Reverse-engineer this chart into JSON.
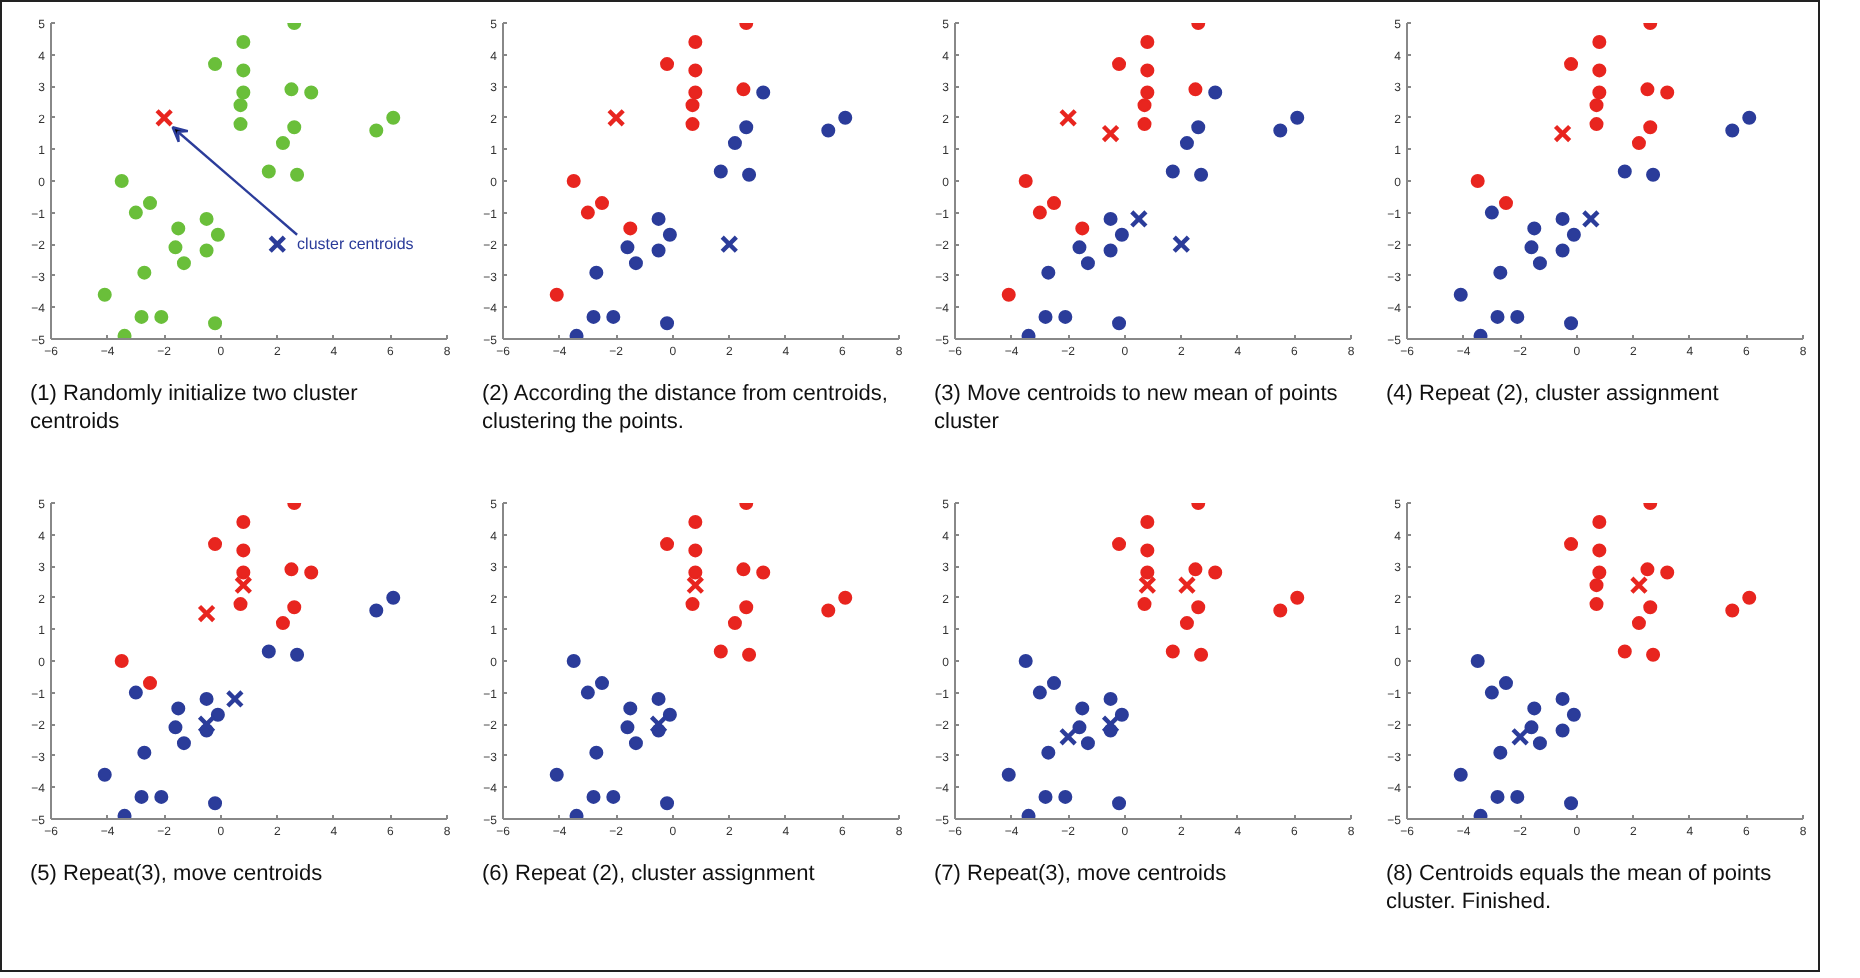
{
  "chart_data": [
    {
      "type": "scatter",
      "title": "(1) Randomly initialize two cluster centroids",
      "xlim": [
        -6,
        8
      ],
      "ylim": [
        -5,
        5
      ],
      "xticks": [
        -6,
        -4,
        -2,
        0,
        2,
        4,
        6,
        8
      ],
      "yticks": [
        -5,
        -4,
        -3,
        -2,
        -1,
        0,
        1,
        2,
        3,
        4,
        5
      ],
      "grid": false,
      "legend": false,
      "annotations": [
        {
          "text": "cluster centroids",
          "x": -2,
          "y": 2
        }
      ],
      "series": [
        {
          "marker": "circle",
          "x": [
            2.6,
            0.8,
            -0.2,
            0.8,
            0.8,
            2.5,
            3.2,
            0.7,
            0.7,
            2.6,
            5.5,
            6.1,
            2.2,
            1.7,
            2.7,
            -3.5,
            -2.5,
            -3.0,
            -1.5,
            -0.5,
            -0.1,
            -1.6,
            -0.5,
            -1.3,
            -2.7,
            -4.1,
            -2.8,
            -2.1,
            -0.2,
            -3.4
          ],
          "values": [
            5.0,
            4.4,
            3.7,
            3.5,
            2.8,
            2.9,
            2.8,
            2.4,
            1.8,
            1.7,
            1.6,
            2.0,
            1.2,
            0.3,
            0.2,
            0.0,
            -0.7,
            -1.0,
            -1.5,
            -1.2,
            -1.7,
            -2.1,
            -2.2,
            -2.6,
            -2.9,
            -3.6,
            -4.3,
            -4.3,
            -4.5,
            -4.9
          ],
          "colors": [
            "#6abf3a",
            "#6abf3a",
            "#6abf3a",
            "#6abf3a",
            "#6abf3a",
            "#6abf3a",
            "#6abf3a",
            "#6abf3a",
            "#6abf3a",
            "#6abf3a",
            "#6abf3a",
            "#6abf3a",
            "#6abf3a",
            "#6abf3a",
            "#6abf3a",
            "#6abf3a",
            "#6abf3a",
            "#6abf3a",
            "#6abf3a",
            "#6abf3a",
            "#6abf3a",
            "#6abf3a",
            "#6abf3a",
            "#6abf3a",
            "#6abf3a",
            "#6abf3a",
            "#6abf3a",
            "#6abf3a",
            "#6abf3a",
            "#6abf3a"
          ]
        },
        {
          "marker": "cross",
          "x": [
            -2,
            2
          ],
          "values": [
            2,
            -2
          ],
          "colors": [
            "#e8251f",
            "#2b3c9a"
          ]
        }
      ]
    },
    {
      "type": "scatter",
      "title": "(2) According the distance from centroids, clustering the points.",
      "xlim": [
        -6,
        8
      ],
      "ylim": [
        -5,
        5
      ],
      "xticks": [
        -6,
        -4,
        -2,
        0,
        2,
        4,
        6,
        8
      ],
      "yticks": [
        -5,
        -4,
        -3,
        -2,
        -1,
        0,
        1,
        2,
        3,
        4,
        5
      ],
      "grid": false,
      "legend": false,
      "series": [
        {
          "marker": "circle",
          "x": [
            2.6,
            0.8,
            -0.2,
            0.8,
            0.8,
            2.5,
            3.2,
            0.7,
            0.7,
            2.6,
            5.5,
            6.1,
            2.2,
            1.7,
            2.7,
            -3.5,
            -2.5,
            -3.0,
            -1.5,
            -0.5,
            -0.1,
            -1.6,
            -0.5,
            -1.3,
            -2.7,
            -4.1,
            -2.8,
            -2.1,
            -0.2,
            -3.4
          ],
          "values": [
            5.0,
            4.4,
            3.7,
            3.5,
            2.8,
            2.9,
            2.8,
            2.4,
            1.8,
            1.7,
            1.6,
            2.0,
            1.2,
            0.3,
            0.2,
            0.0,
            -0.7,
            -1.0,
            -1.5,
            -1.2,
            -1.7,
            -2.1,
            -2.2,
            -2.6,
            -2.9,
            -3.6,
            -4.3,
            -4.3,
            -4.5,
            -4.9
          ],
          "colors": [
            "#e8251f",
            "#e8251f",
            "#e8251f",
            "#e8251f",
            "#e8251f",
            "#e8251f",
            "#2b3c9a",
            "#e8251f",
            "#e8251f",
            "#2b3c9a",
            "#2b3c9a",
            "#2b3c9a",
            "#2b3c9a",
            "#2b3c9a",
            "#2b3c9a",
            "#e8251f",
            "#e8251f",
            "#e8251f",
            "#e8251f",
            "#2b3c9a",
            "#2b3c9a",
            "#2b3c9a",
            "#2b3c9a",
            "#2b3c9a",
            "#2b3c9a",
            "#e8251f",
            "#2b3c9a",
            "#2b3c9a",
            "#2b3c9a",
            "#2b3c9a"
          ]
        },
        {
          "marker": "cross",
          "x": [
            -2,
            2
          ],
          "values": [
            2,
            -2
          ],
          "colors": [
            "#e8251f",
            "#2b3c9a"
          ]
        }
      ]
    },
    {
      "type": "scatter",
      "title": "(3) Move centroids to new mean of points cluster",
      "xlim": [
        -6,
        8
      ],
      "ylim": [
        -5,
        5
      ],
      "xticks": [
        -6,
        -4,
        -2,
        0,
        2,
        4,
        6,
        8
      ],
      "yticks": [
        -5,
        -4,
        -3,
        -2,
        -1,
        0,
        1,
        2,
        3,
        4,
        5
      ],
      "grid": false,
      "legend": false,
      "series": [
        {
          "marker": "circle",
          "x": [
            2.6,
            0.8,
            -0.2,
            0.8,
            0.8,
            2.5,
            3.2,
            0.7,
            0.7,
            2.6,
            5.5,
            6.1,
            2.2,
            1.7,
            2.7,
            -3.5,
            -2.5,
            -3.0,
            -1.5,
            -0.5,
            -0.1,
            -1.6,
            -0.5,
            -1.3,
            -2.7,
            -4.1,
            -2.8,
            -2.1,
            -0.2,
            -3.4
          ],
          "values": [
            5.0,
            4.4,
            3.7,
            3.5,
            2.8,
            2.9,
            2.8,
            2.4,
            1.8,
            1.7,
            1.6,
            2.0,
            1.2,
            0.3,
            0.2,
            0.0,
            -0.7,
            -1.0,
            -1.5,
            -1.2,
            -1.7,
            -2.1,
            -2.2,
            -2.6,
            -2.9,
            -3.6,
            -4.3,
            -4.3,
            -4.5,
            -4.9
          ],
          "colors": [
            "#e8251f",
            "#e8251f",
            "#e8251f",
            "#e8251f",
            "#e8251f",
            "#e8251f",
            "#2b3c9a",
            "#e8251f",
            "#e8251f",
            "#2b3c9a",
            "#2b3c9a",
            "#2b3c9a",
            "#2b3c9a",
            "#2b3c9a",
            "#2b3c9a",
            "#e8251f",
            "#e8251f",
            "#e8251f",
            "#e8251f",
            "#2b3c9a",
            "#2b3c9a",
            "#2b3c9a",
            "#2b3c9a",
            "#2b3c9a",
            "#2b3c9a",
            "#e8251f",
            "#2b3c9a",
            "#2b3c9a",
            "#2b3c9a",
            "#2b3c9a"
          ]
        },
        {
          "marker": "cross",
          "x": [
            -2,
            -0.5,
            2,
            0.5
          ],
          "values": [
            2,
            1.5,
            -2,
            -1.2
          ],
          "colors": [
            "#e8251f",
            "#e8251f",
            "#2b3c9a",
            "#2b3c9a"
          ]
        }
      ]
    },
    {
      "type": "scatter",
      "title": "(4) Repeat (2), cluster assignment",
      "xlim": [
        -6,
        8
      ],
      "ylim": [
        -5,
        5
      ],
      "xticks": [
        -6,
        -4,
        -2,
        0,
        2,
        4,
        6,
        8
      ],
      "yticks": [
        -5,
        -4,
        -3,
        -2,
        -1,
        0,
        1,
        2,
        3,
        4,
        5
      ],
      "grid": false,
      "legend": false,
      "series": [
        {
          "marker": "circle",
          "x": [
            2.6,
            0.8,
            -0.2,
            0.8,
            0.8,
            2.5,
            3.2,
            0.7,
            0.7,
            2.6,
            5.5,
            6.1,
            2.2,
            1.7,
            2.7,
            -3.5,
            -2.5,
            -3.0,
            -1.5,
            -0.5,
            -0.1,
            -1.6,
            -0.5,
            -1.3,
            -2.7,
            -4.1,
            -2.8,
            -2.1,
            -0.2,
            -3.4
          ],
          "values": [
            5.0,
            4.4,
            3.7,
            3.5,
            2.8,
            2.9,
            2.8,
            2.4,
            1.8,
            1.7,
            1.6,
            2.0,
            1.2,
            0.3,
            0.2,
            0.0,
            -0.7,
            -1.0,
            -1.5,
            -1.2,
            -1.7,
            -2.1,
            -2.2,
            -2.6,
            -2.9,
            -3.6,
            -4.3,
            -4.3,
            -4.5,
            -4.9
          ],
          "colors": [
            "#e8251f",
            "#e8251f",
            "#e8251f",
            "#e8251f",
            "#e8251f",
            "#e8251f",
            "#e8251f",
            "#e8251f",
            "#e8251f",
            "#e8251f",
            "#2b3c9a",
            "#2b3c9a",
            "#e8251f",
            "#2b3c9a",
            "#2b3c9a",
            "#e8251f",
            "#e8251f",
            "#2b3c9a",
            "#2b3c9a",
            "#2b3c9a",
            "#2b3c9a",
            "#2b3c9a",
            "#2b3c9a",
            "#2b3c9a",
            "#2b3c9a",
            "#2b3c9a",
            "#2b3c9a",
            "#2b3c9a",
            "#2b3c9a",
            "#2b3c9a"
          ]
        },
        {
          "marker": "cross",
          "x": [
            -0.5,
            0.5
          ],
          "values": [
            1.5,
            -1.2
          ],
          "colors": [
            "#e8251f",
            "#2b3c9a"
          ]
        }
      ]
    },
    {
      "type": "scatter",
      "title": "(5) Repeat(3), move centroids",
      "xlim": [
        -6,
        8
      ],
      "ylim": [
        -5,
        5
      ],
      "xticks": [
        -6,
        -4,
        -2,
        0,
        2,
        4,
        6,
        8
      ],
      "yticks": [
        -5,
        -4,
        -3,
        -2,
        -1,
        0,
        1,
        2,
        3,
        4,
        5
      ],
      "grid": false,
      "legend": false,
      "series": [
        {
          "marker": "circle",
          "x": [
            2.6,
            0.8,
            -0.2,
            0.8,
            0.8,
            2.5,
            3.2,
            null,
            0.7,
            2.6,
            5.5,
            6.1,
            2.2,
            1.7,
            2.7,
            -3.5,
            -2.5,
            -3.0,
            -1.5,
            -0.5,
            -0.1,
            -1.6,
            -0.5,
            -1.3,
            -2.7,
            -4.1,
            -2.8,
            -2.1,
            -0.2,
            -3.4
          ],
          "values": [
            5.0,
            4.4,
            3.7,
            3.5,
            2.8,
            2.9,
            2.8,
            null,
            1.8,
            1.7,
            1.6,
            2.0,
            1.2,
            0.3,
            0.2,
            0.0,
            -0.7,
            -1.0,
            -1.5,
            -1.2,
            -1.7,
            -2.1,
            -2.2,
            -2.6,
            -2.9,
            -3.6,
            -4.3,
            -4.3,
            -4.5,
            -4.9
          ],
          "colors": [
            "#e8251f",
            "#e8251f",
            "#e8251f",
            "#e8251f",
            "#e8251f",
            "#e8251f",
            "#e8251f",
            "#e8251f",
            "#e8251f",
            "#e8251f",
            "#2b3c9a",
            "#2b3c9a",
            "#e8251f",
            "#2b3c9a",
            "#2b3c9a",
            "#e8251f",
            "#e8251f",
            "#2b3c9a",
            "#2b3c9a",
            "#2b3c9a",
            "#2b3c9a",
            "#2b3c9a",
            "#2b3c9a",
            "#2b3c9a",
            "#2b3c9a",
            "#2b3c9a",
            "#2b3c9a",
            "#2b3c9a",
            "#2b3c9a",
            "#2b3c9a"
          ]
        },
        {
          "marker": "cross",
          "x": [
            -0.5,
            0.8,
            0.5,
            -0.5
          ],
          "values": [
            1.5,
            2.4,
            -1.2,
            -2.0
          ],
          "colors": [
            "#e8251f",
            "#e8251f",
            "#2b3c9a",
            "#2b3c9a"
          ]
        }
      ]
    },
    {
      "type": "scatter",
      "title": "(6) Repeat (2), cluster assignment",
      "xlim": [
        -6,
        8
      ],
      "ylim": [
        -5,
        5
      ],
      "xticks": [
        -6,
        -4,
        -2,
        0,
        2,
        4,
        6,
        8
      ],
      "yticks": [
        -5,
        -4,
        -3,
        -2,
        -1,
        0,
        1,
        2,
        3,
        4,
        5
      ],
      "grid": false,
      "legend": false,
      "series": [
        {
          "marker": "circle",
          "x": [
            2.6,
            0.8,
            -0.2,
            0.8,
            0.8,
            2.5,
            3.2,
            null,
            0.7,
            2.6,
            5.5,
            6.1,
            2.2,
            1.7,
            2.7,
            -3.5,
            -2.5,
            -3.0,
            -1.5,
            -0.5,
            -0.1,
            -1.6,
            -0.5,
            -1.3,
            -2.7,
            -4.1,
            -2.8,
            -2.1,
            -0.2,
            -3.4
          ],
          "values": [
            5.0,
            4.4,
            3.7,
            3.5,
            2.8,
            2.9,
            2.8,
            null,
            1.8,
            1.7,
            1.6,
            2.0,
            1.2,
            0.3,
            0.2,
            0.0,
            -0.7,
            -1.0,
            -1.5,
            -1.2,
            -1.7,
            -2.1,
            -2.2,
            -2.6,
            -2.9,
            -3.6,
            -4.3,
            -4.3,
            -4.5,
            -4.9
          ],
          "colors": [
            "#e8251f",
            "#e8251f",
            "#e8251f",
            "#e8251f",
            "#e8251f",
            "#e8251f",
            "#e8251f",
            "#e8251f",
            "#e8251f",
            "#e8251f",
            "#e8251f",
            "#e8251f",
            "#e8251f",
            "#e8251f",
            "#e8251f",
            "#2b3c9a",
            "#2b3c9a",
            "#2b3c9a",
            "#2b3c9a",
            "#2b3c9a",
            "#2b3c9a",
            "#2b3c9a",
            "#2b3c9a",
            "#2b3c9a",
            "#2b3c9a",
            "#2b3c9a",
            "#2b3c9a",
            "#2b3c9a",
            "#2b3c9a",
            "#2b3c9a"
          ]
        },
        {
          "marker": "cross",
          "x": [
            0.8,
            -0.5
          ],
          "values": [
            2.4,
            -2.0
          ],
          "colors": [
            "#e8251f",
            "#2b3c9a"
          ]
        }
      ]
    },
    {
      "type": "scatter",
      "title": "(7) Repeat(3), move centroids",
      "xlim": [
        -6,
        8
      ],
      "ylim": [
        -5,
        5
      ],
      "xticks": [
        -6,
        -4,
        -2,
        0,
        2,
        4,
        6,
        8
      ],
      "yticks": [
        -5,
        -4,
        -3,
        -2,
        -1,
        0,
        1,
        2,
        3,
        4,
        5
      ],
      "grid": false,
      "legend": false,
      "series": [
        {
          "marker": "circle",
          "x": [
            2.6,
            0.8,
            -0.2,
            0.8,
            0.8,
            2.5,
            3.2,
            null,
            0.7,
            2.6,
            5.5,
            6.1,
            2.2,
            1.7,
            2.7,
            -3.5,
            -2.5,
            -3.0,
            -1.5,
            -0.5,
            -0.1,
            -1.6,
            -0.5,
            -1.3,
            -2.7,
            -4.1,
            -2.8,
            -2.1,
            -0.2,
            -3.4
          ],
          "values": [
            5.0,
            4.4,
            3.7,
            3.5,
            2.8,
            2.9,
            2.8,
            null,
            1.8,
            1.7,
            1.6,
            2.0,
            1.2,
            0.3,
            0.2,
            0.0,
            -0.7,
            -1.0,
            -1.5,
            -1.2,
            -1.7,
            -2.1,
            -2.2,
            -2.6,
            -2.9,
            -3.6,
            -4.3,
            -4.3,
            -4.5,
            -4.9
          ],
          "colors": [
            "#e8251f",
            "#e8251f",
            "#e8251f",
            "#e8251f",
            "#e8251f",
            "#e8251f",
            "#e8251f",
            "#e8251f",
            "#e8251f",
            "#e8251f",
            "#e8251f",
            "#e8251f",
            "#e8251f",
            "#e8251f",
            "#e8251f",
            "#2b3c9a",
            "#2b3c9a",
            "#2b3c9a",
            "#2b3c9a",
            "#2b3c9a",
            "#2b3c9a",
            "#2b3c9a",
            "#2b3c9a",
            "#2b3c9a",
            "#2b3c9a",
            "#2b3c9a",
            "#2b3c9a",
            "#2b3c9a",
            "#2b3c9a",
            "#2b3c9a"
          ]
        },
        {
          "marker": "cross",
          "x": [
            0.8,
            2.2,
            -0.5,
            -2.0
          ],
          "values": [
            2.4,
            2.4,
            -2.0,
            -2.4
          ],
          "colors": [
            "#e8251f",
            "#e8251f",
            "#2b3c9a",
            "#2b3c9a"
          ]
        }
      ]
    },
    {
      "type": "scatter",
      "title": "(8) Centroids equals the mean of points cluster. Finished.",
      "xlim": [
        -6,
        8
      ],
      "ylim": [
        -5,
        5
      ],
      "xticks": [
        -6,
        -4,
        -2,
        0,
        2,
        4,
        6,
        8
      ],
      "yticks": [
        -5,
        -4,
        -3,
        -2,
        -1,
        0,
        1,
        2,
        3,
        4,
        5
      ],
      "grid": false,
      "legend": false,
      "series": [
        {
          "marker": "circle",
          "x": [
            2.6,
            0.8,
            -0.2,
            0.8,
            0.8,
            2.5,
            3.2,
            0.7,
            0.7,
            2.6,
            5.5,
            6.1,
            2.2,
            1.7,
            2.7,
            -3.5,
            -2.5,
            -3.0,
            -1.5,
            -0.5,
            -0.1,
            -1.6,
            -0.5,
            -1.3,
            -2.7,
            -4.1,
            -2.8,
            -2.1,
            -0.2,
            -3.4
          ],
          "values": [
            5.0,
            4.4,
            3.7,
            3.5,
            2.8,
            2.9,
            2.8,
            2.4,
            1.8,
            1.7,
            1.6,
            2.0,
            1.2,
            0.3,
            0.2,
            0.0,
            -0.7,
            -1.0,
            -1.5,
            -1.2,
            -1.7,
            -2.1,
            -2.2,
            -2.6,
            -2.9,
            -3.6,
            -4.3,
            -4.3,
            -4.5,
            -4.9
          ],
          "colors": [
            "#e8251f",
            "#e8251f",
            "#e8251f",
            "#e8251f",
            "#e8251f",
            "#e8251f",
            "#e8251f",
            "#e8251f",
            "#e8251f",
            "#e8251f",
            "#e8251f",
            "#e8251f",
            "#e8251f",
            "#e8251f",
            "#e8251f",
            "#2b3c9a",
            "#2b3c9a",
            "#2b3c9a",
            "#2b3c9a",
            "#2b3c9a",
            "#2b3c9a",
            "#2b3c9a",
            "#2b3c9a",
            "#2b3c9a",
            "#2b3c9a",
            "#2b3c9a",
            "#2b3c9a",
            "#2b3c9a",
            "#2b3c9a",
            "#2b3c9a"
          ]
        },
        {
          "marker": "cross",
          "x": [
            2.2,
            -2.0
          ],
          "values": [
            2.4,
            -2.4
          ],
          "colors": [
            "#e8251f",
            "#2b3c9a"
          ]
        }
      ]
    }
  ]
}
